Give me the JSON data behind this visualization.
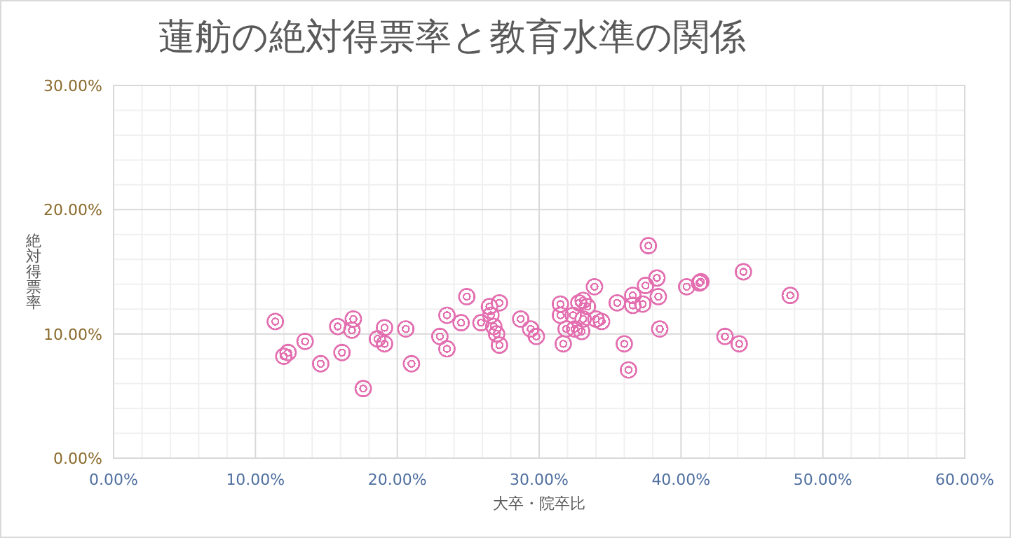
{
  "chart_data": {
    "type": "scatter",
    "title": "蓮舫の絶対得票率と教育水準の関係",
    "xlabel": "大卒・院卒比",
    "ylabel": "絶対得票率",
    "xlim": [
      0,
      60
    ],
    "ylim": [
      0,
      30
    ],
    "xticks": [
      {
        "value": 0,
        "label": "0.00%"
      },
      {
        "value": 10,
        "label": "10.00%"
      },
      {
        "value": 20,
        "label": "20.00%"
      },
      {
        "value": 30,
        "label": "30.00%"
      },
      {
        "value": 40,
        "label": "40.00%"
      },
      {
        "value": 50,
        "label": "50.00%"
      },
      {
        "value": 60,
        "label": "60.00%"
      }
    ],
    "yticks": [
      {
        "value": 0,
        "label": "0.00%"
      },
      {
        "value": 10,
        "label": "10.00%"
      },
      {
        "value": 20,
        "label": "20.00%"
      },
      {
        "value": 30,
        "label": "30.00%"
      }
    ],
    "grid": true,
    "marker": "circle",
    "series": [
      {
        "color": "#e36fb0",
        "x": [
          11.4,
          12.0,
          12.3,
          13.5,
          14.6,
          15.8,
          16.1,
          16.9,
          16.8,
          17.6,
          18.6,
          19.1,
          19.1,
          20.6,
          21.0,
          23.5,
          23.0,
          23.5,
          24.5,
          24.9,
          25.9,
          26.5,
          27.2,
          26.6,
          26.8,
          27.0,
          27.2,
          28.7,
          29.4,
          29.8,
          31.5,
          31.5,
          31.7,
          31.9,
          32.5,
          32.4,
          32.8,
          33.1,
          33.4,
          33.1,
          33.0,
          33.9,
          34.0,
          34.4,
          35.5,
          36.0,
          36.3,
          36.6,
          36.6,
          37.3,
          37.5,
          37.7,
          38.3,
          38.4,
          38.5,
          40.4,
          41.3,
          41.4,
          44.4,
          47.7,
          43.1,
          44.1
        ],
        "values": [
          11.0,
          8.2,
          8.5,
          9.4,
          7.6,
          10.6,
          8.5,
          11.2,
          10.3,
          5.6,
          9.6,
          10.5,
          9.2,
          10.4,
          7.6,
          11.5,
          9.8,
          8.8,
          10.9,
          13.0,
          10.9,
          12.2,
          12.5,
          11.5,
          10.6,
          10.0,
          9.1,
          11.2,
          10.4,
          9.8,
          12.4,
          11.5,
          9.2,
          10.4,
          10.4,
          11.5,
          12.5,
          12.7,
          12.2,
          11.2,
          10.2,
          13.8,
          11.2,
          11.0,
          12.5,
          9.2,
          7.1,
          13.1,
          12.3,
          12.4,
          13.9,
          17.1,
          14.5,
          13.0,
          10.4,
          13.8,
          14.1,
          14.2,
          15.0,
          13.1,
          9.8,
          9.2
        ]
      }
    ]
  }
}
